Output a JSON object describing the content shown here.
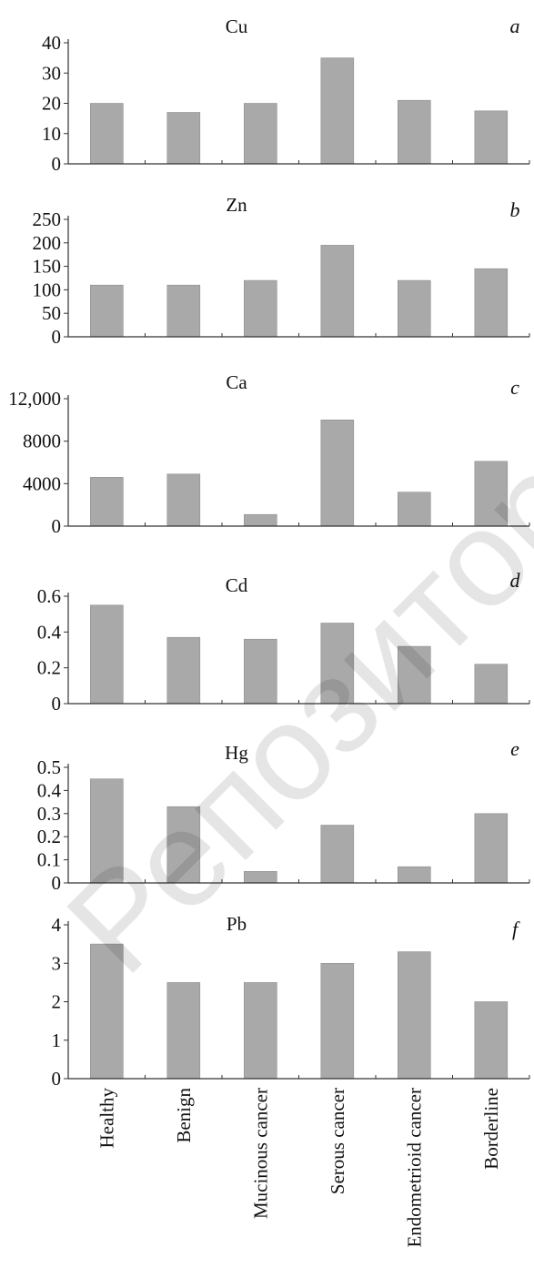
{
  "colors": {
    "bar": "#a9a9a9",
    "axis": "#333333",
    "text": "#111111"
  },
  "watermark_text": "Репозиторий ГГУ",
  "categories": [
    "Healthy",
    "Benign",
    "Mucinous cancer",
    "Serous cancer",
    "Endometrioid cancer",
    "Borderline"
  ],
  "chart_data": [
    {
      "type": "bar",
      "title": "Cu",
      "panel_label": "a",
      "categories": [
        "Healthy",
        "Benign",
        "Mucinous cancer",
        "Serous cancer",
        "Endometrioid cancer",
        "Borderline"
      ],
      "values": [
        20,
        17,
        20,
        35,
        21,
        17.5
      ],
      "ylim": [
        0,
        40
      ],
      "yticks": [
        0,
        10,
        20,
        30,
        40
      ],
      "ytick_labels": [
        "0",
        "10",
        "20",
        "30",
        "40"
      ]
    },
    {
      "type": "bar",
      "title": "Zn",
      "panel_label": "b",
      "categories": [
        "Healthy",
        "Benign",
        "Mucinous cancer",
        "Serous cancer",
        "Endometrioid cancer",
        "Borderline"
      ],
      "values": [
        110,
        110,
        120,
        195,
        120,
        145
      ],
      "ylim": [
        0,
        250
      ],
      "yticks": [
        0,
        50,
        100,
        150,
        200,
        250
      ],
      "ytick_labels": [
        "0",
        "50",
        "100",
        "150",
        "200",
        "250"
      ]
    },
    {
      "type": "bar",
      "title": "Ca",
      "panel_label": "c",
      "categories": [
        "Healthy",
        "Benign",
        "Mucinous cancer",
        "Serous cancer",
        "Endometrioid cancer",
        "Borderline"
      ],
      "values": [
        4600,
        4900,
        1100,
        10000,
        3200,
        6100
      ],
      "ylim": [
        0,
        12000
      ],
      "yticks": [
        0,
        4000,
        8000,
        12000
      ],
      "ytick_labels": [
        "0",
        "4000",
        "8000",
        "12,000"
      ]
    },
    {
      "type": "bar",
      "title": "Cd",
      "panel_label": "d",
      "categories": [
        "Healthy",
        "Benign",
        "Mucinous cancer",
        "Serous cancer",
        "Endometrioid cancer",
        "Borderline"
      ],
      "values": [
        0.55,
        0.37,
        0.36,
        0.45,
        0.32,
        0.22
      ],
      "ylim": [
        0,
        0.6
      ],
      "yticks": [
        0,
        0.2,
        0.4,
        0.6
      ],
      "ytick_labels": [
        "0",
        "0.2",
        "0.4",
        "0.6"
      ]
    },
    {
      "type": "bar",
      "title": "Hg",
      "panel_label": "e",
      "categories": [
        "Healthy",
        "Benign",
        "Mucinous cancer",
        "Serous cancer",
        "Endometrioid cancer",
        "Borderline"
      ],
      "values": [
        0.45,
        0.33,
        0.05,
        0.25,
        0.07,
        0.3
      ],
      "ylim": [
        0,
        0.5
      ],
      "yticks": [
        0,
        0.1,
        0.2,
        0.3,
        0.4,
        0.5
      ],
      "ytick_labels": [
        "0",
        "0.1",
        "0.2",
        "0.3",
        "0.4",
        "0.5"
      ]
    },
    {
      "type": "bar",
      "title": "Pb",
      "panel_label": "f",
      "categories": [
        "Healthy",
        "Benign",
        "Mucinous cancer",
        "Serous cancer",
        "Endometrioid cancer",
        "Borderline"
      ],
      "values": [
        3.5,
        2.5,
        2.5,
        3,
        3.3,
        2
      ],
      "ylim": [
        0,
        4
      ],
      "yticks": [
        0,
        1,
        2,
        3,
        4
      ],
      "ytick_labels": [
        "0",
        "1",
        "2",
        "3",
        "4"
      ]
    }
  ]
}
